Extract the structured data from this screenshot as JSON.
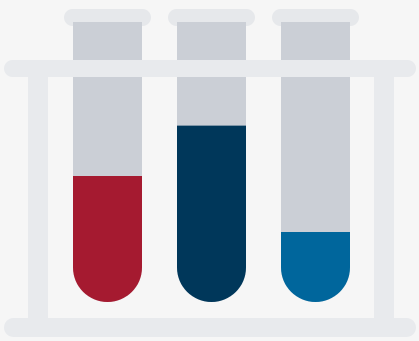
{
  "illustration": {
    "icon": "test-tubes-in-rack-icon",
    "colors": {
      "background": "#f6f6f6",
      "rack": "#e8eaed",
      "tube_glass": "#cbcfd6",
      "tube_cap": "#e6e8eb"
    },
    "tubes": [
      {
        "liquid_color": "#a51a30",
        "fill_fraction": 0.45
      },
      {
        "liquid_color": "#00375a",
        "fill_fraction": 0.63
      },
      {
        "liquid_color": "#00669c",
        "fill_fraction": 0.25
      }
    ]
  }
}
